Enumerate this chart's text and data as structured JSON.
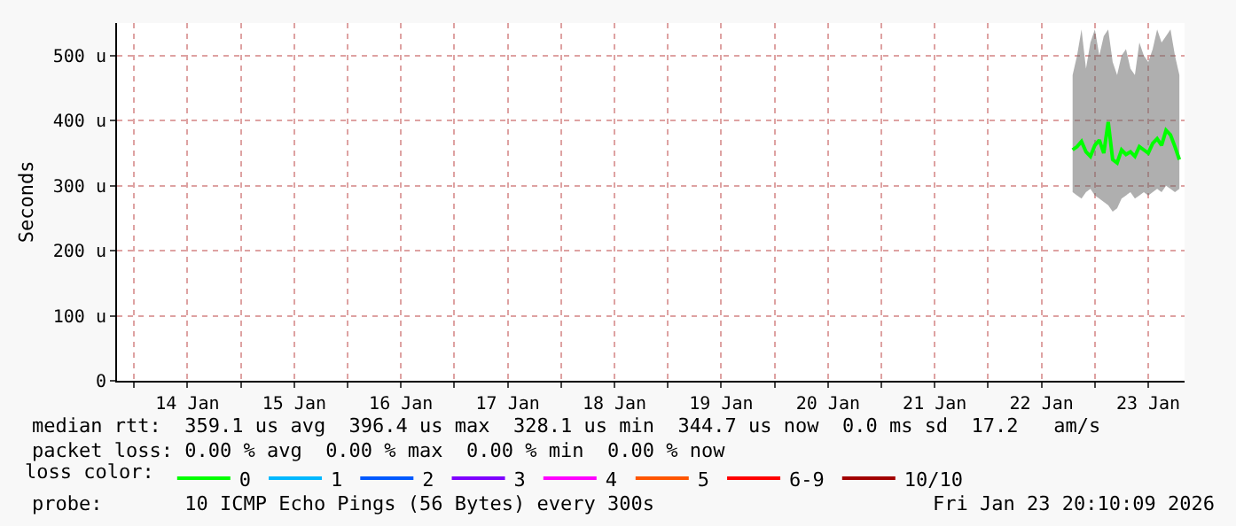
{
  "chart_data": {
    "type": "line",
    "ylabel": "Seconds",
    "x": [
      "2026-01-22T19:00",
      "2026-01-22T20:00",
      "2026-01-22T21:00",
      "2026-01-22T22:00",
      "2026-01-22T23:00",
      "2026-01-23T00:00",
      "2026-01-23T01:00",
      "2026-01-23T02:00",
      "2026-01-23T03:00",
      "2026-01-23T04:00",
      "2026-01-23T05:00",
      "2026-01-23T06:00",
      "2026-01-23T07:00",
      "2026-01-23T08:00",
      "2026-01-23T09:00",
      "2026-01-23T10:00",
      "2026-01-23T11:00",
      "2026-01-23T12:00",
      "2026-01-23T13:00",
      "2026-01-23T14:00",
      "2026-01-23T15:00",
      "2026-01-23T16:00",
      "2026-01-23T17:00",
      "2026-01-23T18:00",
      "2026-01-23T19:00"
    ],
    "series": [
      {
        "name": "0",
        "color": "#00ff00",
        "values": [
          355,
          360,
          368,
          352,
          345,
          362,
          370,
          350,
          398,
          340,
          335,
          355,
          348,
          352,
          345,
          360,
          355,
          350,
          365,
          372,
          362,
          385,
          378,
          360,
          340
        ],
        "lower": [
          290,
          285,
          280,
          290,
          295,
          285,
          280,
          275,
          270,
          260,
          265,
          280,
          285,
          290,
          280,
          285,
          290,
          285,
          290,
          295,
          290,
          300,
          295,
          290,
          295
        ],
        "upper": [
          470,
          500,
          540,
          480,
          520,
          540,
          500,
          530,
          540,
          490,
          470,
          500,
          510,
          480,
          470,
          520,
          500,
          490,
          510,
          540,
          520,
          530,
          540,
          500,
          470
        ]
      },
      {
        "name": "1",
        "color": "#00b8ff",
        "values": [
          null,
          null,
          null,
          null,
          null,
          null,
          null,
          null,
          null,
          null,
          null,
          null,
          null,
          null,
          null,
          null,
          null,
          null,
          null,
          null,
          null,
          null,
          null,
          null,
          null
        ]
      },
      {
        "name": "2",
        "color": "#0059ff",
        "values": [
          null,
          null,
          null,
          null,
          null,
          null,
          null,
          null,
          null,
          null,
          null,
          null,
          null,
          null,
          null,
          null,
          null,
          null,
          null,
          null,
          null,
          null,
          null,
          null,
          null
        ]
      },
      {
        "name": "3",
        "color": "#7e00ff",
        "values": [
          null,
          null,
          null,
          null,
          null,
          null,
          null,
          null,
          null,
          null,
          null,
          null,
          null,
          null,
          null,
          null,
          null,
          null,
          null,
          null,
          null,
          null,
          null,
          null,
          null
        ]
      },
      {
        "name": "4",
        "color": "#ff00ff",
        "values": [
          null,
          null,
          null,
          null,
          null,
          null,
          null,
          null,
          null,
          null,
          null,
          null,
          null,
          null,
          null,
          null,
          null,
          null,
          null,
          null,
          null,
          null,
          null,
          null,
          null
        ]
      },
      {
        "name": "5",
        "color": "#ff5500",
        "values": [
          null,
          null,
          null,
          null,
          null,
          null,
          null,
          null,
          null,
          null,
          null,
          null,
          null,
          null,
          null,
          null,
          null,
          null,
          null,
          null,
          null,
          null,
          null,
          null,
          null
        ]
      },
      {
        "name": "6-9",
        "color": "#ff0000",
        "values": [
          null,
          null,
          null,
          null,
          null,
          null,
          null,
          null,
          null,
          null,
          null,
          null,
          null,
          null,
          null,
          null,
          null,
          null,
          null,
          null,
          null,
          null,
          null,
          null,
          null
        ]
      },
      {
        "name": "10/10",
        "color": "#a10000",
        "values": [
          null,
          null,
          null,
          null,
          null,
          null,
          null,
          null,
          null,
          null,
          null,
          null,
          null,
          null,
          null,
          null,
          null,
          null,
          null,
          null,
          null,
          null,
          null,
          null,
          null
        ]
      }
    ],
    "legend": "bottom",
    "legend_title": "loss color:",
    "xlim": [
      "2026-01-13T20:10",
      "2026-01-23T20:10"
    ],
    "xticks": [
      {
        "value": "2026-01-14T00:00",
        "label": null
      },
      {
        "value": "2026-01-14T12:00",
        "label": "14 Jan"
      },
      {
        "value": "2026-01-15T00:00",
        "label": null
      },
      {
        "value": "2026-01-15T12:00",
        "label": "15 Jan"
      },
      {
        "value": "2026-01-16T00:00",
        "label": null
      },
      {
        "value": "2026-01-16T12:00",
        "label": "16 Jan"
      },
      {
        "value": "2026-01-17T00:00",
        "label": null
      },
      {
        "value": "2026-01-17T12:00",
        "label": "17 Jan"
      },
      {
        "value": "2026-01-18T00:00",
        "label": null
      },
      {
        "value": "2026-01-18T12:00",
        "label": "18 Jan"
      },
      {
        "value": "2026-01-19T00:00",
        "label": null
      },
      {
        "value": "2026-01-19T12:00",
        "label": "19 Jan"
      },
      {
        "value": "2026-01-20T00:00",
        "label": null
      },
      {
        "value": "2026-01-20T12:00",
        "label": "20 Jan"
      },
      {
        "value": "2026-01-21T00:00",
        "label": null
      },
      {
        "value": "2026-01-21T12:00",
        "label": "21 Jan"
      },
      {
        "value": "2026-01-22T00:00",
        "label": null
      },
      {
        "value": "2026-01-22T12:00",
        "label": "22 Jan"
      },
      {
        "value": "2026-01-23T00:00",
        "label": null
      },
      {
        "value": "2026-01-23T12:00",
        "label": "23 Jan"
      }
    ],
    "ylim": [
      0,
      550
    ],
    "yticks": [
      0,
      {
        "value": 100,
        "label": "100 u"
      },
      {
        "value": 200,
        "label": "200 u"
      },
      {
        "value": 300,
        "label": "300 u"
      },
      {
        "value": 400,
        "label": "400 u"
      },
      {
        "value": 500,
        "label": "500 u"
      }
    ],
    "grid": true,
    "marker": "none",
    "line_style": "solid",
    "annotations": [
      "median rtt:  359.1 us avg  396.4 us max  328.1 us min  344.7 us now  0.0 ms sd  17.2   am/s",
      "packet loss: 0.00 % avg  0.00 % max  0.00 % min  0.00 % now",
      "probe:       10 ICMP Echo Pings (56 Bytes) every 300s",
      "Fri Jan 23 20:10:09 2026"
    ]
  }
}
